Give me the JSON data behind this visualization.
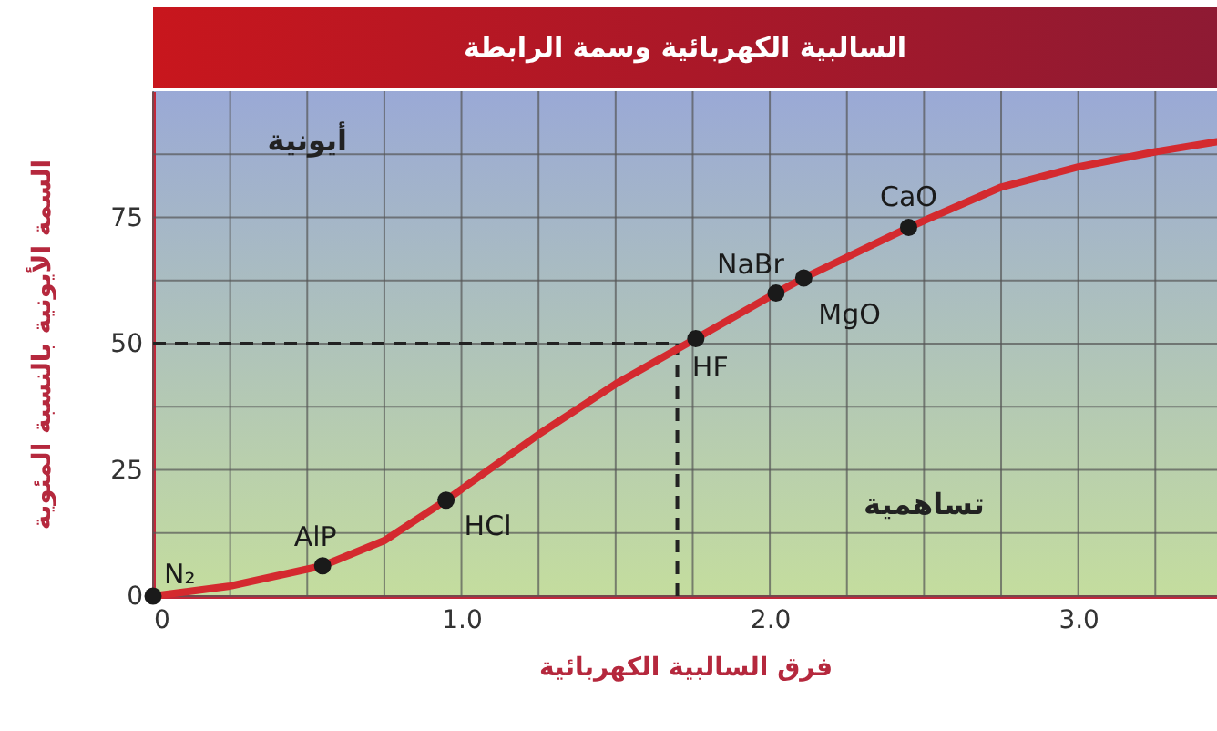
{
  "chart_data": {
    "type": "line",
    "title": "السالبية الكهربائية وسمة الرابطة",
    "xlabel": "فرق السالبية الكهربائية",
    "ylabel": "السمة الأيونية بالنسبة المئوية",
    "xlim": [
      0,
      3.45
    ],
    "ylim": [
      0,
      100
    ],
    "xticks": [
      0,
      {
        "value": 0.25,
        "label": null
      },
      {
        "value": 0.5,
        "label": null
      },
      {
        "value": 0.75,
        "label": null
      },
      {
        "value": 1,
        "label": "1.0"
      },
      {
        "value": 1.25,
        "label": null
      },
      {
        "value": 1.5,
        "label": null
      },
      {
        "value": 1.75,
        "label": null
      },
      {
        "value": 2,
        "label": "2.0"
      },
      {
        "value": 2.25,
        "label": null
      },
      {
        "value": 2.5,
        "label": null
      },
      {
        "value": 2.75,
        "label": null
      },
      {
        "value": 3,
        "label": "3.0"
      },
      {
        "value": 3.25,
        "label": null
      }
    ],
    "yticks": [
      0,
      {
        "value": 12.5,
        "label": null
      },
      25,
      {
        "value": 37.5,
        "label": null
      },
      50,
      {
        "value": 62.5,
        "label": null
      },
      75,
      {
        "value": 87.5,
        "label": null
      }
    ],
    "grid": true,
    "series": [
      {
        "color": "#d42a2f",
        "x": [
          0,
          0.25,
          0.55,
          0.75,
          0.95,
          1.25,
          1.5,
          1.76,
          2.02,
          2.11,
          2.45,
          2.75,
          3.0,
          3.25,
          3.45
        ],
        "values": [
          0,
          2,
          6,
          11,
          19,
          32,
          42,
          51,
          60,
          63,
          73,
          81,
          85,
          88,
          90
        ]
      },
      {
        "type": "scatter",
        "color": "#1a1a1a",
        "x": [
          0,
          0.55,
          0.95,
          1.76,
          2.02,
          2.11,
          2.45
        ],
        "values": [
          0,
          6,
          19,
          51,
          60,
          63,
          73
        ]
      }
    ],
    "ref_lines": [
      {
        "axis": "y",
        "value": 50,
        "color": "#222222",
        "line_style": "dashed"
      },
      {
        "axis": "x",
        "value": 1.7,
        "color": "#222222",
        "line_style": "dashed"
      }
    ],
    "annotations": [
      "أيونية",
      "تساهمية",
      {
        "text": "N₂",
        "x": 0,
        "y": 0
      },
      {
        "text": "AlP",
        "x": 0.55,
        "y": 6
      },
      {
        "text": "HCl",
        "x": 0.95,
        "y": 19
      },
      {
        "text": "HF",
        "x": 1.76,
        "y": 51
      },
      {
        "text": "NaBr",
        "x": 2.02,
        "y": 60
      },
      {
        "text": "MgO",
        "x": 2.11,
        "y": 63
      },
      {
        "text": "CaO",
        "x": 2.45,
        "y": 73
      }
    ]
  }
}
